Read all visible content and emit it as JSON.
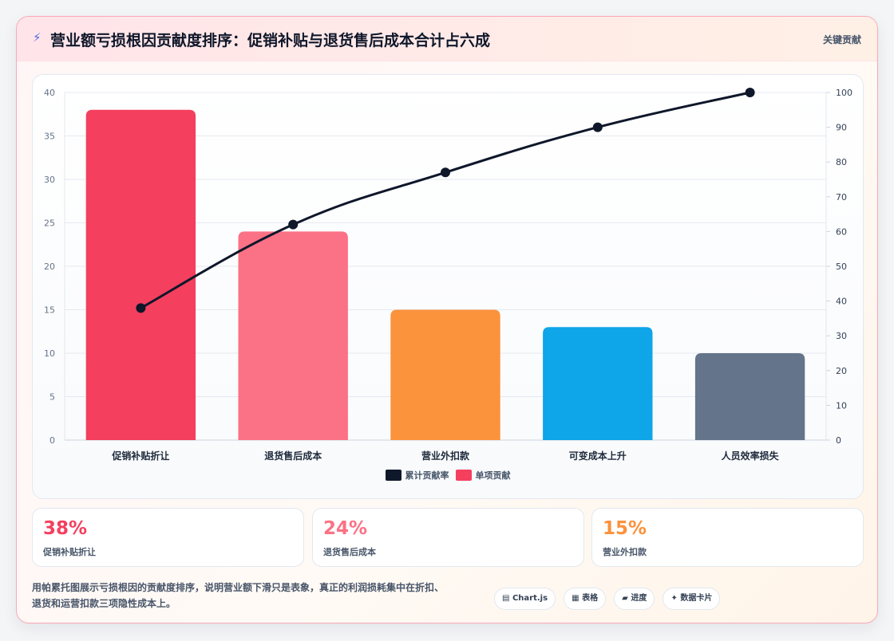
{
  "header": {
    "title_icon": "lightning-icon",
    "title": "营业额亏损根因贡献度排序：促销补贴与退货售后成本合计占六成",
    "tag": "关键贡献"
  },
  "chart_data": {
    "type": "bar",
    "categories": [
      "促销补贴折让",
      "退货售后成本",
      "营业外扣款",
      "可变成本上升",
      "人员效率损失"
    ],
    "series": [
      {
        "name": "单项贡献",
        "type": "bar",
        "axis": "left",
        "values": [
          38,
          24,
          15,
          13,
          10
        ]
      },
      {
        "name": "累计贡献率",
        "type": "line",
        "axis": "right",
        "values": [
          38,
          62,
          77,
          90,
          100
        ]
      }
    ],
    "bar_colors": [
      "#f43f5e",
      "#fb7185",
      "#fb923c",
      "#0ea5e9",
      "#64748b"
    ],
    "line_color": "#0f172a",
    "legend_order": [
      "累计贡献率",
      "单项贡献"
    ],
    "legend_position": "bottom",
    "y_left": {
      "min": 0,
      "max": 40,
      "ticks": [
        0,
        5,
        10,
        15,
        20,
        25,
        30,
        35,
        40
      ]
    },
    "y_right": {
      "min": 0,
      "max": 100,
      "ticks": [
        0,
        10,
        20,
        30,
        40,
        50,
        60,
        70,
        80,
        90,
        100
      ]
    },
    "grid": true
  },
  "stats": [
    {
      "value": "38%",
      "label": "促销补贴折让",
      "color": "#f43f5e"
    },
    {
      "value": "24%",
      "label": "退货售后成本",
      "color": "#fb7185"
    },
    {
      "value": "15%",
      "label": "营业外扣款",
      "color": "#fb923c"
    }
  ],
  "footer": {
    "description_line1": "用帕累托图展示亏损根因的贡献度排序，说明营业额下滑只是表象，真正的利润损耗集中在折扣、",
    "description_line2": "退货和运营扣款三项隐性成本上。",
    "chips": [
      {
        "icon": "▤",
        "icon_name": "chart-library-icon",
        "label": "Chart.js"
      },
      {
        "icon": "▦",
        "icon_name": "table-icon",
        "label": "表格"
      },
      {
        "icon": "▰",
        "icon_name": "progress-icon",
        "label": "进度"
      },
      {
        "icon": "✦",
        "icon_name": "data-card-icon",
        "label": "数据卡片"
      }
    ]
  }
}
